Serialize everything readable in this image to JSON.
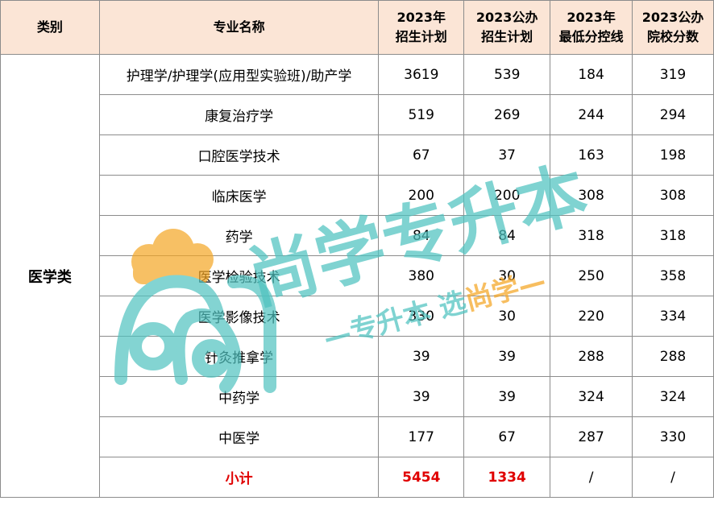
{
  "headers": [
    "类别",
    "专业名称",
    "2023年招生计划",
    "2023公办招生计划",
    "2023年最低分控线",
    "2023公办院校分数"
  ],
  "header_lines": [
    [
      "类别"
    ],
    [
      "专业名称"
    ],
    [
      "2023年",
      "招生计划"
    ],
    [
      "2023公办",
      "招生计划"
    ],
    [
      "2023年",
      "最低分控线"
    ],
    [
      "2023公办",
      "院校分数"
    ]
  ],
  "category": "医学类",
  "rows": [
    {
      "name": "护理学/护理学(应用型实验班)/助产学",
      "plan": "3619",
      "public_plan": "539",
      "min_score": "184",
      "public_score": "319"
    },
    {
      "name": "康复治疗学",
      "plan": "519",
      "public_plan": "269",
      "min_score": "244",
      "public_score": "294"
    },
    {
      "name": "口腔医学技术",
      "plan": "67",
      "public_plan": "37",
      "min_score": "163",
      "public_score": "198"
    },
    {
      "name": "临床医学",
      "plan": "200",
      "public_plan": "200",
      "min_score": "308",
      "public_score": "308"
    },
    {
      "name": "药学",
      "plan": "84",
      "public_plan": "84",
      "min_score": "318",
      "public_score": "318"
    },
    {
      "name": "医学检验技术",
      "plan": "380",
      "public_plan": "30",
      "min_score": "250",
      "public_score": "358"
    },
    {
      "name": "医学影像技术",
      "plan": "330",
      "public_plan": "30",
      "min_score": "220",
      "public_score": "334"
    },
    {
      "name": "针灸推拿学",
      "plan": "39",
      "public_plan": "39",
      "min_score": "288",
      "public_score": "288"
    },
    {
      "name": "中药学",
      "plan": "39",
      "public_plan": "39",
      "min_score": "324",
      "public_score": "324"
    },
    {
      "name": "中医学",
      "plan": "177",
      "public_plan": "67",
      "min_score": "287",
      "public_score": "330"
    }
  ],
  "subtotal": {
    "label": "小计",
    "plan": "5454",
    "public_plan": "1334",
    "min_score": "/",
    "public_score": "/"
  },
  "watermark": {
    "brand": "尚学专升本",
    "slogan_prefix": "—专升本 选",
    "slogan_brand": "尚学—"
  },
  "colors": {
    "header_bg": "#fbe5d6",
    "subtotal_text": "#e00000",
    "watermark_teal": "#4fc3c0",
    "watermark_orange": "#f5a623"
  }
}
